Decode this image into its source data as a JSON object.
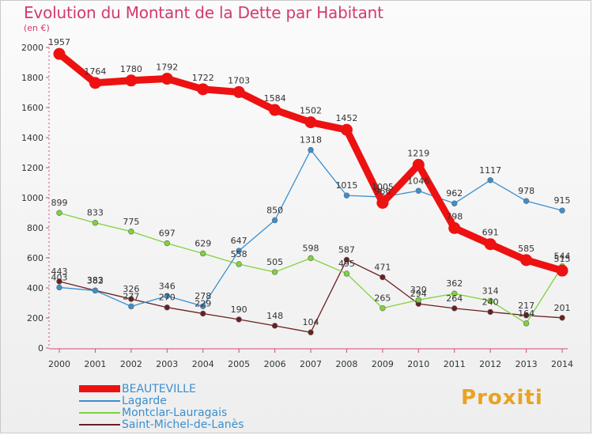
{
  "title": "Evolution du Montant de la Dette par Habitant",
  "unit_label": "(en €)",
  "logo_text": "Proxiti",
  "chart_data": {
    "type": "line",
    "x": [
      "2000",
      "2001",
      "2002",
      "2003",
      "2004",
      "2005",
      "2006",
      "2007",
      "2008",
      "2009",
      "2010",
      "2011",
      "2012",
      "2013",
      "2014"
    ],
    "ylim": [
      0,
      2000
    ],
    "yticks": [
      "0",
      "200",
      "400",
      "600",
      "800",
      "1000",
      "1200",
      "1400",
      "1600",
      "1800",
      "2000"
    ],
    "grid": false,
    "legend_position": "bottom-left",
    "series": [
      {
        "name": "BEAUTEVILLE",
        "color": "#ee1111",
        "values": [
          1957,
          1764,
          1780,
          1792,
          1722,
          1703,
          1584,
          1502,
          1452,
          966,
          1219,
          798,
          691,
          585,
          515
        ],
        "labels": [
          "1957",
          "1764",
          "1780",
          "1792",
          "1722",
          "1703",
          "1584",
          "1502",
          "1452",
          "966",
          "1219",
          "798",
          "691",
          "585",
          "515"
        ]
      },
      {
        "name": "Lagarde",
        "color": "#3a8fd0",
        "values": [
          403,
          382,
          277,
          346,
          278,
          647,
          850,
          1318,
          1015,
          1005,
          1046,
          962,
          1117,
          978,
          915
        ],
        "labels": [
          "403",
          "382",
          "277",
          "346",
          "278",
          "647",
          "850",
          "1318",
          "1015",
          "1005",
          "1046",
          "962",
          "1117",
          "978",
          "915"
        ]
      },
      {
        "name": "Montclar-Lauragais",
        "color": "#7ed33a",
        "values": [
          899,
          833,
          775,
          697,
          629,
          558,
          505,
          598,
          495,
          265,
          320,
          362,
          314,
          164,
          544
        ],
        "labels": [
          "899",
          "833",
          "775",
          "697",
          "629",
          "558",
          "505",
          "598",
          "495",
          "265",
          "320",
          "362",
          "314",
          "164",
          "544"
        ]
      },
      {
        "name": "Saint-Michel-de-Lanès",
        "color": "#6b1f1f",
        "values": [
          443,
          383,
          326,
          270,
          229,
          190,
          148,
          104,
          587,
          471,
          294,
          264,
          240,
          217,
          201
        ],
        "labels": [
          "443",
          "383",
          "326",
          "270",
          "229",
          "190",
          "148",
          "104",
          "587",
          "471",
          "294",
          "264",
          "240",
          "217",
          "201"
        ]
      }
    ]
  }
}
